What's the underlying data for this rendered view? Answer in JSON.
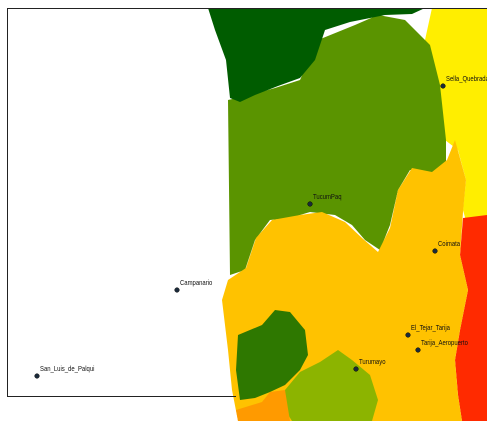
{
  "stations": [
    {
      "label": "Sella_Quebrada"
    },
    {
      "label": "TucumPaq"
    },
    {
      "label": "Coimata"
    },
    {
      "label": "Campanario"
    },
    {
      "label": "El_Tejar_Tarija"
    },
    {
      "label": "Tarija_Aeropuerto"
    },
    {
      "label": "Turumayo"
    },
    {
      "label": "San_Luis_de_Palqui"
    }
  ]
}
